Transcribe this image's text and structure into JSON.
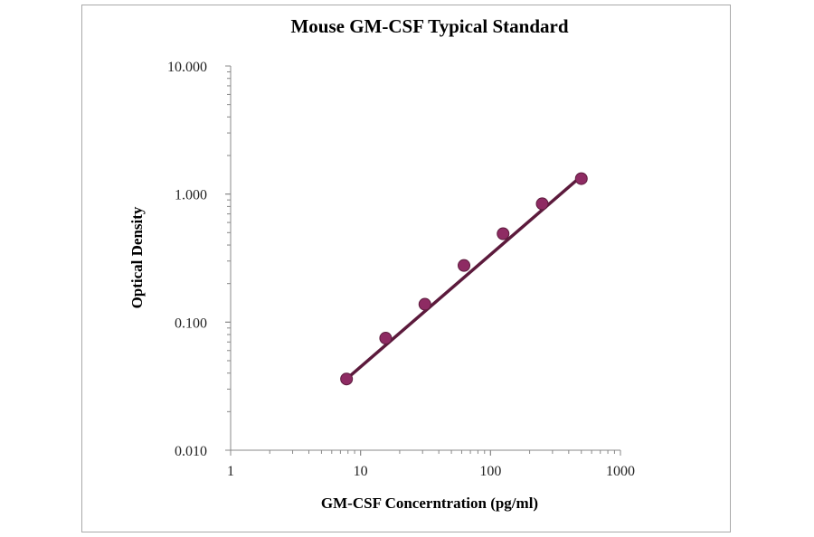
{
  "chart_data": {
    "type": "scatter",
    "title": "Mouse GM-CSF Typical Standard",
    "xlabel": "GM-CSF Concerntration (pg/ml)",
    "ylabel": "Optical Density",
    "x_scale": "log",
    "y_scale": "log",
    "xlim": [
      1,
      1000
    ],
    "ylim": [
      0.01,
      10
    ],
    "x_ticks": [
      "1",
      "10",
      "100",
      "1000"
    ],
    "y_ticks": [
      "0.010",
      "0.100",
      "1.000",
      "10.000"
    ],
    "grid": false,
    "series": [
      {
        "x": [
          7.8,
          15.6,
          31.25,
          62.5,
          125,
          250,
          500
        ],
        "y": [
          0.036,
          0.075,
          0.138,
          0.277,
          0.49,
          0.84,
          1.32
        ]
      }
    ],
    "trendline": {
      "x": [
        7.8,
        500
      ],
      "y": [
        0.036,
        1.38
      ]
    },
    "colors": {
      "marker": "#8e2b63",
      "line": "#5c1a3c",
      "axis": "#888888"
    }
  }
}
